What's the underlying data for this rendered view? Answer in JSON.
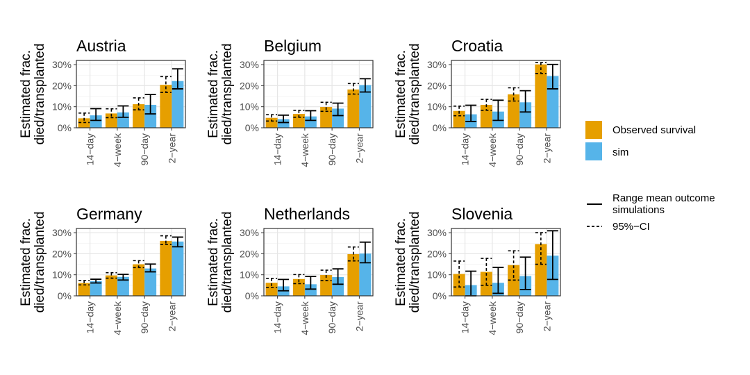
{
  "chart_data": {
    "type": "bar",
    "y_axis_label_line1": "Estimated frac.",
    "y_axis_label_line2": "died/transplanted",
    "categories": [
      "14−day",
      "4−week",
      "90−day",
      "2−year"
    ],
    "y_ticks": [
      "0%",
      "10%",
      "20%",
      "30%"
    ],
    "ylim": [
      0,
      0.32
    ],
    "grid": true,
    "series_names": [
      "Observed survival",
      "sim"
    ],
    "colors": {
      "observed": "#E69F00",
      "sim": "#56B4E9"
    },
    "legend": {
      "fill_items": [
        "Observed survival",
        "sim"
      ],
      "line_items": [
        "Range mean outcome\n simulations",
        "95%−CI"
      ],
      "placement": "right"
    },
    "panels": [
      {
        "title": "Austria",
        "observed": [
          0.045,
          0.068,
          0.112,
          0.204
        ],
        "observed_ci": [
          [
            0.025,
            0.07
          ],
          [
            0.048,
            0.09
          ],
          [
            0.085,
            0.142
          ],
          [
            0.168,
            0.243
          ]
        ],
        "sim": [
          0.059,
          0.073,
          0.109,
          0.222
        ],
        "sim_range": [
          [
            0.035,
            0.091
          ],
          [
            0.05,
            0.104
          ],
          [
            0.066,
            0.158
          ],
          [
            0.185,
            0.28
          ]
        ]
      },
      {
        "title": "Belgium",
        "observed": [
          0.047,
          0.066,
          0.099,
          0.182
        ],
        "observed_ci": [
          [
            0.032,
            0.062
          ],
          [
            0.05,
            0.083
          ],
          [
            0.078,
            0.121
          ],
          [
            0.16,
            0.21
          ]
        ],
        "sim": [
          0.041,
          0.054,
          0.091,
          0.203
        ],
        "sim_range": [
          [
            0.025,
            0.06
          ],
          [
            0.035,
            0.081
          ],
          [
            0.058,
            0.117
          ],
          [
            0.17,
            0.233
          ]
        ]
      },
      {
        "title": "Croatia",
        "observed": [
          0.08,
          0.109,
          0.159,
          0.301
        ],
        "observed_ci": [
          [
            0.057,
            0.103
          ],
          [
            0.083,
            0.135
          ],
          [
            0.127,
            0.19
          ],
          [
            0.258,
            0.31
          ]
        ],
        "sim": [
          0.064,
          0.077,
          0.121,
          0.246
        ],
        "sim_range": [
          [
            0.03,
            0.107
          ],
          [
            0.035,
            0.131
          ],
          [
            0.075,
            0.176
          ],
          [
            0.185,
            0.301
          ]
        ]
      },
      {
        "title": "Germany",
        "observed": [
          0.061,
          0.097,
          0.15,
          0.261
        ],
        "observed_ci": [
          [
            0.052,
            0.073
          ],
          [
            0.084,
            0.11
          ],
          [
            0.134,
            0.167
          ],
          [
            0.244,
            0.285
          ]
        ],
        "sim": [
          0.07,
          0.09,
          0.13,
          0.258
        ],
        "sim_range": [
          [
            0.061,
            0.079
          ],
          [
            0.075,
            0.102
          ],
          [
            0.114,
            0.151
          ],
          [
            0.233,
            0.279
          ]
        ]
      },
      {
        "title": "Netherlands",
        "observed": [
          0.062,
          0.08,
          0.099,
          0.198
        ],
        "observed_ci": [
          [
            0.04,
            0.083
          ],
          [
            0.058,
            0.101
          ],
          [
            0.072,
            0.122
          ],
          [
            0.166,
            0.232
          ]
        ],
        "sim": [
          0.045,
          0.055,
          0.089,
          0.201
        ],
        "sim_range": [
          [
            0.024,
            0.078
          ],
          [
            0.032,
            0.092
          ],
          [
            0.055,
            0.128
          ],
          [
            0.157,
            0.255
          ]
        ]
      },
      {
        "title": "Slovenia",
        "observed": [
          0.104,
          0.114,
          0.146,
          0.246
        ],
        "observed_ci": [
          [
            0.042,
            0.165
          ],
          [
            0.05,
            0.178
          ],
          [
            0.075,
            0.214
          ],
          [
            0.15,
            0.3
          ]
        ],
        "sim": [
          0.051,
          0.062,
          0.094,
          0.191
        ],
        "sim_range": [
          [
            0.0,
            0.117
          ],
          [
            0.012,
            0.135
          ],
          [
            0.03,
            0.184
          ],
          [
            0.078,
            0.309
          ]
        ]
      }
    ]
  }
}
